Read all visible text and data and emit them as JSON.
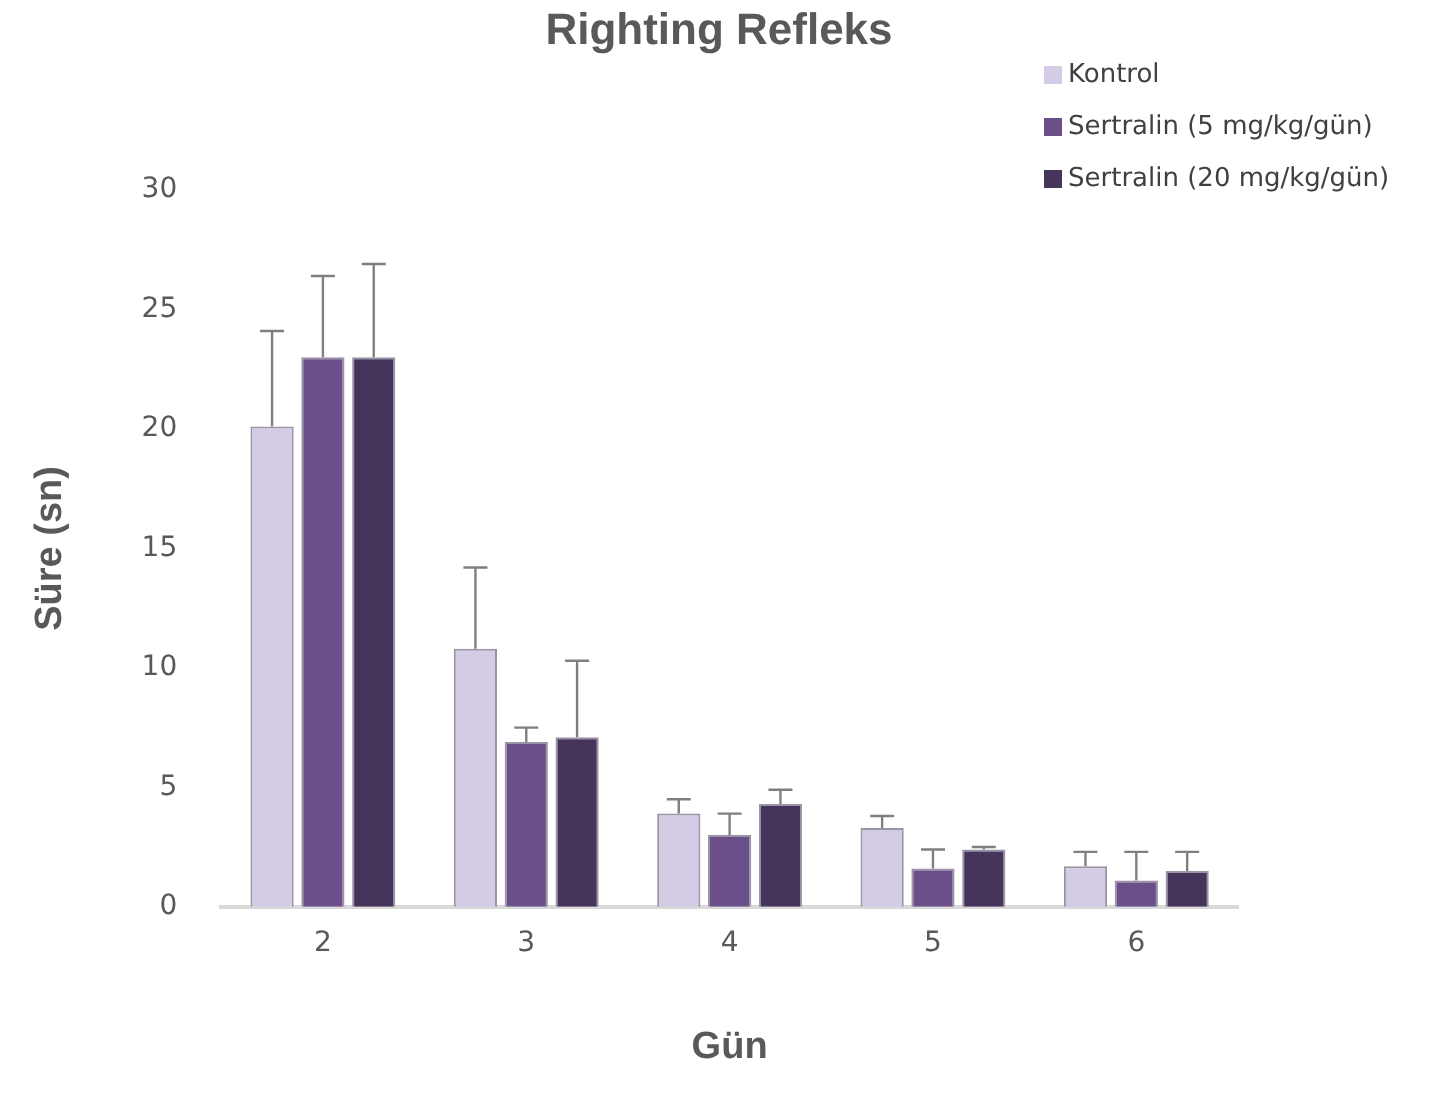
{
  "chart_data": {
    "type": "bar",
    "title": "Righting Refleks",
    "xlabel": "Gün",
    "ylabel": "Süre (sn)",
    "categories": [
      "2",
      "3",
      "4",
      "5",
      "6"
    ],
    "series": [
      {
        "name": "Kontrol",
        "color": "#d4cce4",
        "values": [
          20.1,
          10.8,
          3.9,
          3.3,
          1.7
        ],
        "errors": [
          4.0,
          3.4,
          0.6,
          0.5,
          0.6
        ]
      },
      {
        "name": "Sertralin (5 mg/kg/gün)",
        "color": "#6a4f8a",
        "values": [
          23.0,
          6.9,
          3.0,
          1.6,
          1.1
        ],
        "errors": [
          3.4,
          0.6,
          0.9,
          0.8,
          1.2
        ]
      },
      {
        "name": "Sertralin (20 mg/kg/gün)",
        "color": "#45355a",
        "values": [
          23.0,
          7.1,
          4.3,
          2.4,
          1.5
        ],
        "errors": [
          3.9,
          3.2,
          0.6,
          0.1,
          0.8
        ]
      }
    ],
    "ylim": [
      0,
      30
    ],
    "yticks": [
      0,
      5,
      10,
      15,
      20,
      25,
      30
    ],
    "grid": false,
    "legend": "top right"
  }
}
